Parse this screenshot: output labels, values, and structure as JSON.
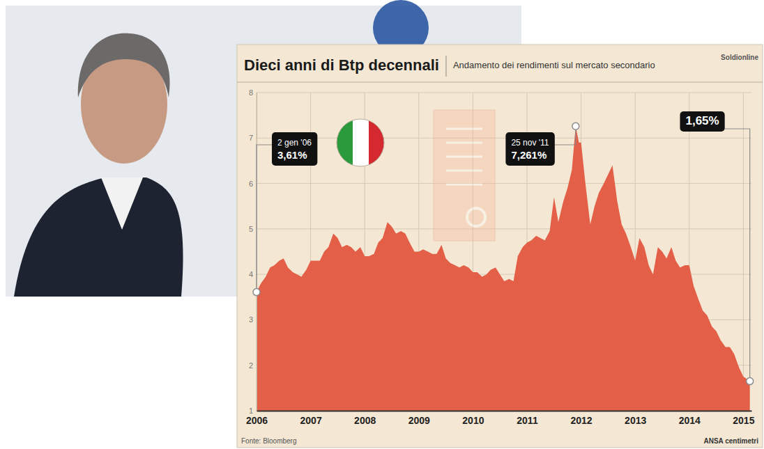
{
  "chart_data": {
    "type": "area",
    "title": "Dieci anni di Btp decennali",
    "subtitle": "Andamento dei rendimenti sul mercato secondario",
    "logo": "Soldionline",
    "source": "Fonte: Bloomberg",
    "credit": "ANSA centimetri",
    "color": "#e35f47",
    "grid": true,
    "xlim": [
      2006,
      2015.15
    ],
    "xticks": [
      2006,
      2007,
      2008,
      2009,
      2010,
      2011,
      2012,
      2013,
      2014,
      2015
    ],
    "ylim": [
      1,
      8
    ],
    "yticks": [
      1,
      2,
      3,
      4,
      5,
      6,
      7,
      8
    ],
    "x": [
      2006.0,
      2006.08,
      2006.17,
      2006.25,
      2006.33,
      2006.42,
      2006.5,
      2006.58,
      2006.67,
      2006.75,
      2006.83,
      2006.92,
      2007.0,
      2007.08,
      2007.17,
      2007.25,
      2007.33,
      2007.42,
      2007.5,
      2007.58,
      2007.67,
      2007.75,
      2007.83,
      2007.92,
      2008.0,
      2008.08,
      2008.17,
      2008.25,
      2008.33,
      2008.42,
      2008.5,
      2008.58,
      2008.67,
      2008.75,
      2008.83,
      2008.92,
      2009.0,
      2009.08,
      2009.17,
      2009.25,
      2009.33,
      2009.42,
      2009.5,
      2009.58,
      2009.67,
      2009.75,
      2009.83,
      2009.92,
      2010.0,
      2010.08,
      2010.17,
      2010.25,
      2010.33,
      2010.42,
      2010.5,
      2010.58,
      2010.67,
      2010.75,
      2010.83,
      2010.92,
      2011.0,
      2011.08,
      2011.17,
      2011.25,
      2011.33,
      2011.42,
      2011.5,
      2011.58,
      2011.67,
      2011.75,
      2011.83,
      2011.9,
      2011.96,
      2012.0,
      2012.08,
      2012.17,
      2012.25,
      2012.33,
      2012.42,
      2012.5,
      2012.58,
      2012.67,
      2012.75,
      2012.83,
      2012.92,
      2013.0,
      2013.08,
      2013.17,
      2013.25,
      2013.33,
      2013.42,
      2013.5,
      2013.58,
      2013.67,
      2013.75,
      2013.83,
      2013.92,
      2014.0,
      2014.08,
      2014.17,
      2014.25,
      2014.33,
      2014.42,
      2014.5,
      2014.58,
      2014.67,
      2014.75,
      2014.83,
      2014.92,
      2015.0,
      2015.12
    ],
    "values": [
      3.61,
      3.8,
      3.95,
      4.15,
      4.2,
      4.3,
      4.35,
      4.15,
      4.05,
      4.0,
      3.95,
      4.1,
      4.3,
      4.3,
      4.3,
      4.5,
      4.6,
      4.9,
      4.8,
      4.6,
      4.65,
      4.6,
      4.5,
      4.6,
      4.4,
      4.4,
      4.45,
      4.7,
      4.8,
      5.15,
      5.05,
      4.9,
      4.95,
      4.9,
      4.7,
      4.5,
      4.5,
      4.55,
      4.5,
      4.45,
      4.45,
      4.65,
      4.35,
      4.25,
      4.2,
      4.15,
      4.2,
      4.15,
      4.05,
      4.05,
      3.95,
      4.0,
      4.1,
      4.15,
      4.0,
      3.85,
      3.9,
      3.85,
      4.4,
      4.6,
      4.7,
      4.75,
      4.85,
      4.8,
      4.75,
      4.95,
      5.7,
      5.15,
      5.6,
      5.9,
      6.3,
      7.261,
      6.9,
      6.9,
      6.0,
      5.1,
      5.5,
      5.8,
      6.0,
      6.2,
      6.4,
      5.6,
      5.1,
      4.9,
      4.6,
      4.3,
      4.8,
      4.6,
      4.2,
      4.0,
      4.6,
      4.5,
      4.35,
      4.6,
      4.3,
      4.15,
      4.2,
      4.2,
      3.75,
      3.45,
      3.2,
      3.1,
      2.85,
      2.75,
      2.55,
      2.4,
      2.4,
      2.25,
      1.95,
      1.75,
      1.65
    ],
    "annotations": [
      {
        "label": "2 gen '06",
        "value_label": "3,61%",
        "x": 2006.0,
        "y": 3.61
      },
      {
        "label": "25 nov '11",
        "value_label": "7,261%",
        "x": 2011.9,
        "y": 7.261
      },
      {
        "value_label": "1,65%",
        "x": 2015.12,
        "y": 1.65
      }
    ]
  }
}
